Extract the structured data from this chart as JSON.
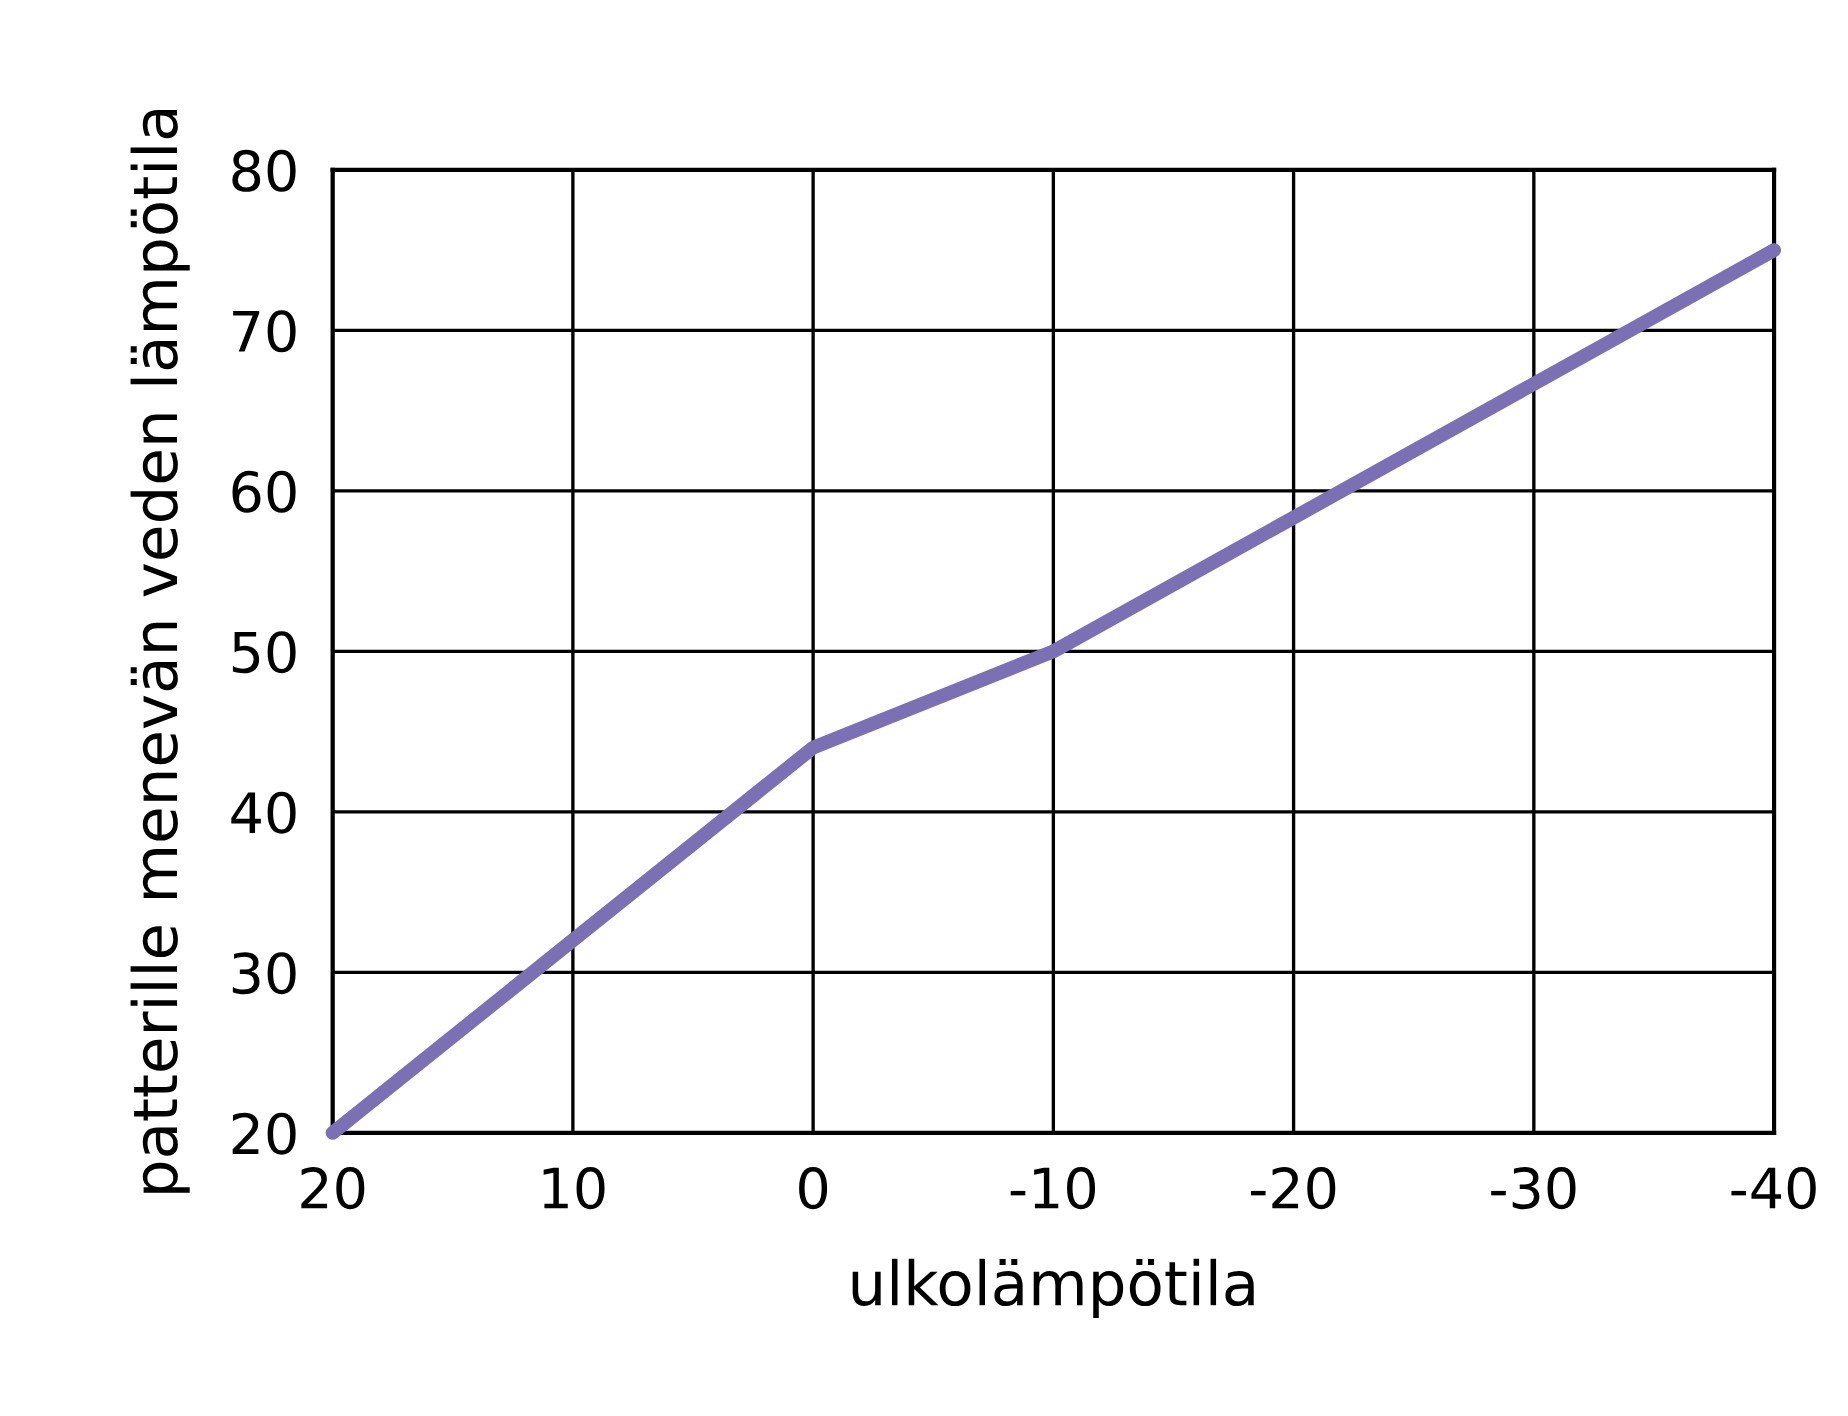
{
  "chart_data": {
    "type": "line",
    "xlabel": "ulkolämpötila",
    "ylabel": "patterille menevän veden lämpötila",
    "x": [
      20,
      0,
      -10,
      -40
    ],
    "series": [
      {
        "color": "#7b70b4",
        "values": [
          20,
          44,
          50,
          75
        ]
      }
    ],
    "xlim": [
      20,
      -40
    ],
    "xticks": [
      20,
      10,
      0,
      -10,
      -20,
      -30,
      -40
    ],
    "ylim": [
      20,
      80
    ],
    "yticks": [
      20,
      30,
      40,
      50,
      60,
      70,
      80
    ],
    "grid": true,
    "marker": "none",
    "line_style": "solid"
  }
}
